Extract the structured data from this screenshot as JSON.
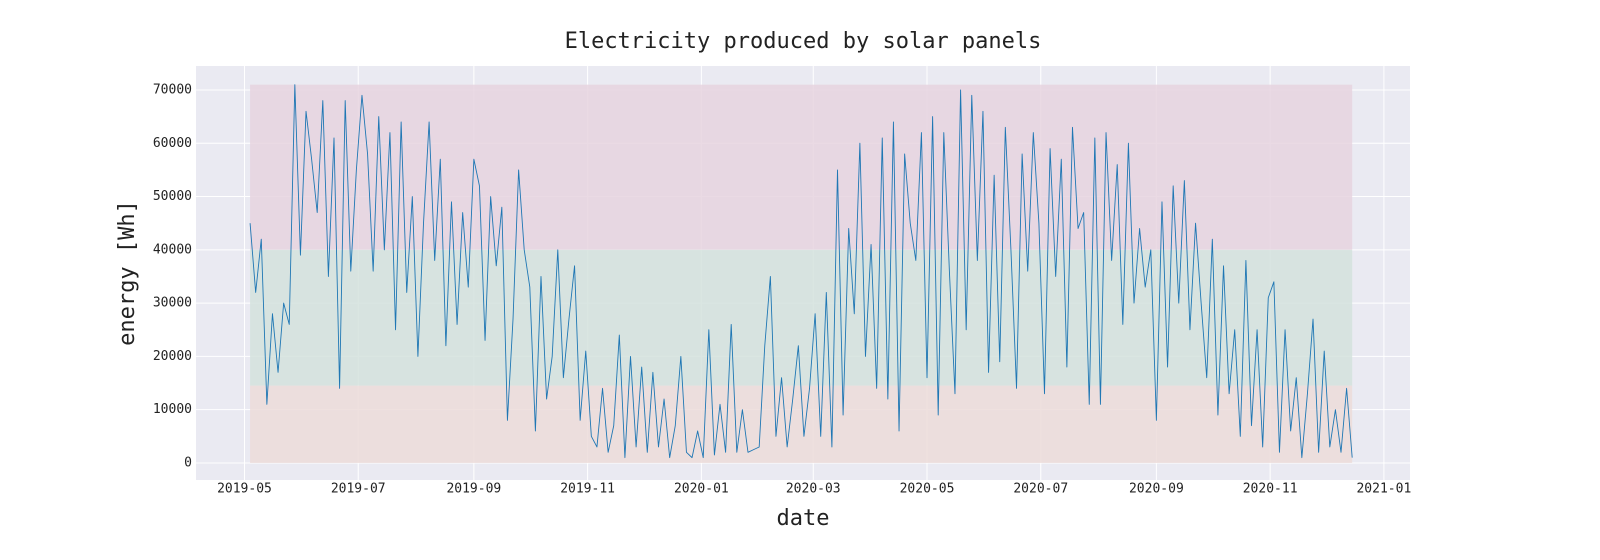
{
  "chart_data": {
    "type": "line",
    "title": "Electricity produced by solar panels",
    "x_label": "date",
    "y_label": "energy [Wh]",
    "xlim": [
      "2019-04-05",
      "2021-01-15"
    ],
    "xticks": [
      {
        "value": "2019-05-01",
        "label": "2019-05"
      },
      {
        "value": "2019-07-01",
        "label": "2019-07"
      },
      {
        "value": "2019-09-01",
        "label": "2019-09"
      },
      {
        "value": "2019-11-01",
        "label": "2019-11"
      },
      {
        "value": "2020-01-01",
        "label": "2020-01"
      },
      {
        "value": "2020-03-01",
        "label": "2020-03"
      },
      {
        "value": "2020-05-01",
        "label": "2020-05"
      },
      {
        "value": "2020-07-01",
        "label": "2020-07"
      },
      {
        "value": "2020-09-01",
        "label": "2020-09"
      },
      {
        "value": "2020-11-01",
        "label": "2020-11"
      },
      {
        "value": "2021-01-01",
        "label": "2021-01"
      }
    ],
    "ylim": [
      -3200,
      74500
    ],
    "yticks": [
      0,
      10000,
      20000,
      30000,
      40000,
      50000,
      60000,
      70000
    ],
    "grid": true,
    "bands": [
      {
        "from": 40000,
        "to": 71000,
        "color": "#e6d4df"
      },
      {
        "from": 14500,
        "to": 40000,
        "color": "#d4e2dd"
      },
      {
        "from": 0,
        "to": 14500,
        "color": "#ecdcd9"
      }
    ],
    "x": [
      "2019-05-04",
      "2019-05-07",
      "2019-05-10",
      "2019-05-13",
      "2019-05-16",
      "2019-05-19",
      "2019-05-22",
      "2019-05-25",
      "2019-05-28",
      "2019-05-31",
      "2019-06-03",
      "2019-06-06",
      "2019-06-09",
      "2019-06-12",
      "2019-06-15",
      "2019-06-18",
      "2019-06-21",
      "2019-06-24",
      "2019-06-27",
      "2019-06-30",
      "2019-07-03",
      "2019-07-06",
      "2019-07-09",
      "2019-07-12",
      "2019-07-15",
      "2019-07-18",
      "2019-07-21",
      "2019-07-24",
      "2019-07-27",
      "2019-07-30",
      "2019-08-02",
      "2019-08-05",
      "2019-08-08",
      "2019-08-11",
      "2019-08-14",
      "2019-08-17",
      "2019-08-20",
      "2019-08-23",
      "2019-08-26",
      "2019-08-29",
      "2019-09-01",
      "2019-09-04",
      "2019-09-07",
      "2019-09-10",
      "2019-09-13",
      "2019-09-16",
      "2019-09-19",
      "2019-09-22",
      "2019-09-25",
      "2019-09-28",
      "2019-10-01",
      "2019-10-04",
      "2019-10-07",
      "2019-10-10",
      "2019-10-13",
      "2019-10-16",
      "2019-10-19",
      "2019-10-22",
      "2019-10-25",
      "2019-10-28",
      "2019-10-31",
      "2019-11-03",
      "2019-11-06",
      "2019-11-09",
      "2019-11-12",
      "2019-11-15",
      "2019-11-18",
      "2019-11-21",
      "2019-11-24",
      "2019-11-27",
      "2019-11-30",
      "2019-12-03",
      "2019-12-06",
      "2019-12-09",
      "2019-12-12",
      "2019-12-15",
      "2019-12-18",
      "2019-12-21",
      "2019-12-24",
      "2019-12-27",
      "2019-12-30",
      "2020-01-02",
      "2020-01-05",
      "2020-01-08",
      "2020-01-11",
      "2020-01-14",
      "2020-01-17",
      "2020-01-20",
      "2020-01-23",
      "2020-01-26",
      "2020-01-29",
      "2020-02-01",
      "2020-02-04",
      "2020-02-07",
      "2020-02-10",
      "2020-02-13",
      "2020-02-16",
      "2020-02-19",
      "2020-02-22",
      "2020-02-25",
      "2020-02-28",
      "2020-03-02",
      "2020-03-05",
      "2020-03-08",
      "2020-03-11",
      "2020-03-14",
      "2020-03-17",
      "2020-03-20",
      "2020-03-23",
      "2020-03-26",
      "2020-03-29",
      "2020-04-01",
      "2020-04-04",
      "2020-04-07",
      "2020-04-10",
      "2020-04-13",
      "2020-04-16",
      "2020-04-19",
      "2020-04-22",
      "2020-04-25",
      "2020-04-28",
      "2020-05-01",
      "2020-05-04",
      "2020-05-07",
      "2020-05-10",
      "2020-05-13",
      "2020-05-16",
      "2020-05-19",
      "2020-05-22",
      "2020-05-25",
      "2020-05-28",
      "2020-05-31",
      "2020-06-03",
      "2020-06-06",
      "2020-06-09",
      "2020-06-12",
      "2020-06-15",
      "2020-06-18",
      "2020-06-21",
      "2020-06-24",
      "2020-06-27",
      "2020-06-30",
      "2020-07-03",
      "2020-07-06",
      "2020-07-09",
      "2020-07-12",
      "2020-07-15",
      "2020-07-18",
      "2020-07-21",
      "2020-07-24",
      "2020-07-27",
      "2020-07-30",
      "2020-08-02",
      "2020-08-05",
      "2020-08-08",
      "2020-08-11",
      "2020-08-14",
      "2020-08-17",
      "2020-08-20",
      "2020-08-23",
      "2020-08-26",
      "2020-08-29",
      "2020-09-01",
      "2020-09-04",
      "2020-09-07",
      "2020-09-10",
      "2020-09-13",
      "2020-09-16",
      "2020-09-19",
      "2020-09-22",
      "2020-09-25",
      "2020-09-28",
      "2020-10-01",
      "2020-10-04",
      "2020-10-07",
      "2020-10-10",
      "2020-10-13",
      "2020-10-16",
      "2020-10-19",
      "2020-10-22",
      "2020-10-25",
      "2020-10-28",
      "2020-10-31",
      "2020-11-03",
      "2020-11-06",
      "2020-11-09",
      "2020-11-12",
      "2020-11-15",
      "2020-11-18",
      "2020-11-21",
      "2020-11-24",
      "2020-11-27",
      "2020-11-30",
      "2020-12-03",
      "2020-12-06",
      "2020-12-09",
      "2020-12-12",
      "2020-12-15"
    ],
    "series": [
      {
        "color": "#1f77b4",
        "values": [
          45000,
          32000,
          42000,
          11000,
          28000,
          17000,
          30000,
          26000,
          71000,
          39000,
          66000,
          57000,
          47000,
          68000,
          35000,
          61000,
          14000,
          68000,
          36000,
          55000,
          69000,
          58000,
          36000,
          65000,
          40000,
          62000,
          25000,
          64000,
          32000,
          50000,
          20000,
          45000,
          64000,
          38000,
          57000,
          22000,
          49000,
          26000,
          47000,
          33000,
          57000,
          52000,
          23000,
          50000,
          37000,
          48000,
          8000,
          27000,
          55000,
          40000,
          33000,
          6000,
          35000,
          12000,
          20000,
          40000,
          16000,
          27000,
          37000,
          8000,
          21000,
          5000,
          3000,
          14000,
          2000,
          7000,
          24000,
          1000,
          20000,
          3000,
          18000,
          2000,
          17000,
          3000,
          12000,
          1000,
          7000,
          20000,
          2000,
          1000,
          6000,
          1000,
          25000,
          1500,
          11000,
          2000,
          26000,
          2000,
          10000,
          2000,
          2500,
          3000,
          22000,
          35000,
          5000,
          16000,
          3000,
          12000,
          22000,
          5000,
          14000,
          28000,
          5000,
          32000,
          3000,
          55000,
          9000,
          44000,
          28000,
          60000,
          20000,
          41000,
          14000,
          61000,
          12000,
          64000,
          6000,
          58000,
          45000,
          38000,
          62000,
          16000,
          65000,
          9000,
          62000,
          36000,
          13000,
          70000,
          25000,
          69000,
          38000,
          66000,
          17000,
          54000,
          19000,
          63000,
          40000,
          14000,
          58000,
          36000,
          62000,
          45000,
          13000,
          59000,
          35000,
          57000,
          18000,
          63000,
          44000,
          47000,
          11000,
          61000,
          11000,
          62000,
          38000,
          56000,
          26000,
          60000,
          30000,
          44000,
          33000,
          40000,
          8000,
          49000,
          18000,
          52000,
          30000,
          53000,
          25000,
          45000,
          30000,
          16000,
          42000,
          9000,
          37000,
          13000,
          25000,
          5000,
          38000,
          7000,
          25000,
          3000,
          31000,
          34000,
          2000,
          25000,
          6000,
          16000,
          1000,
          13000,
          27000,
          2000,
          21000,
          3000,
          10000,
          2000,
          14000,
          1000
        ]
      }
    ]
  }
}
